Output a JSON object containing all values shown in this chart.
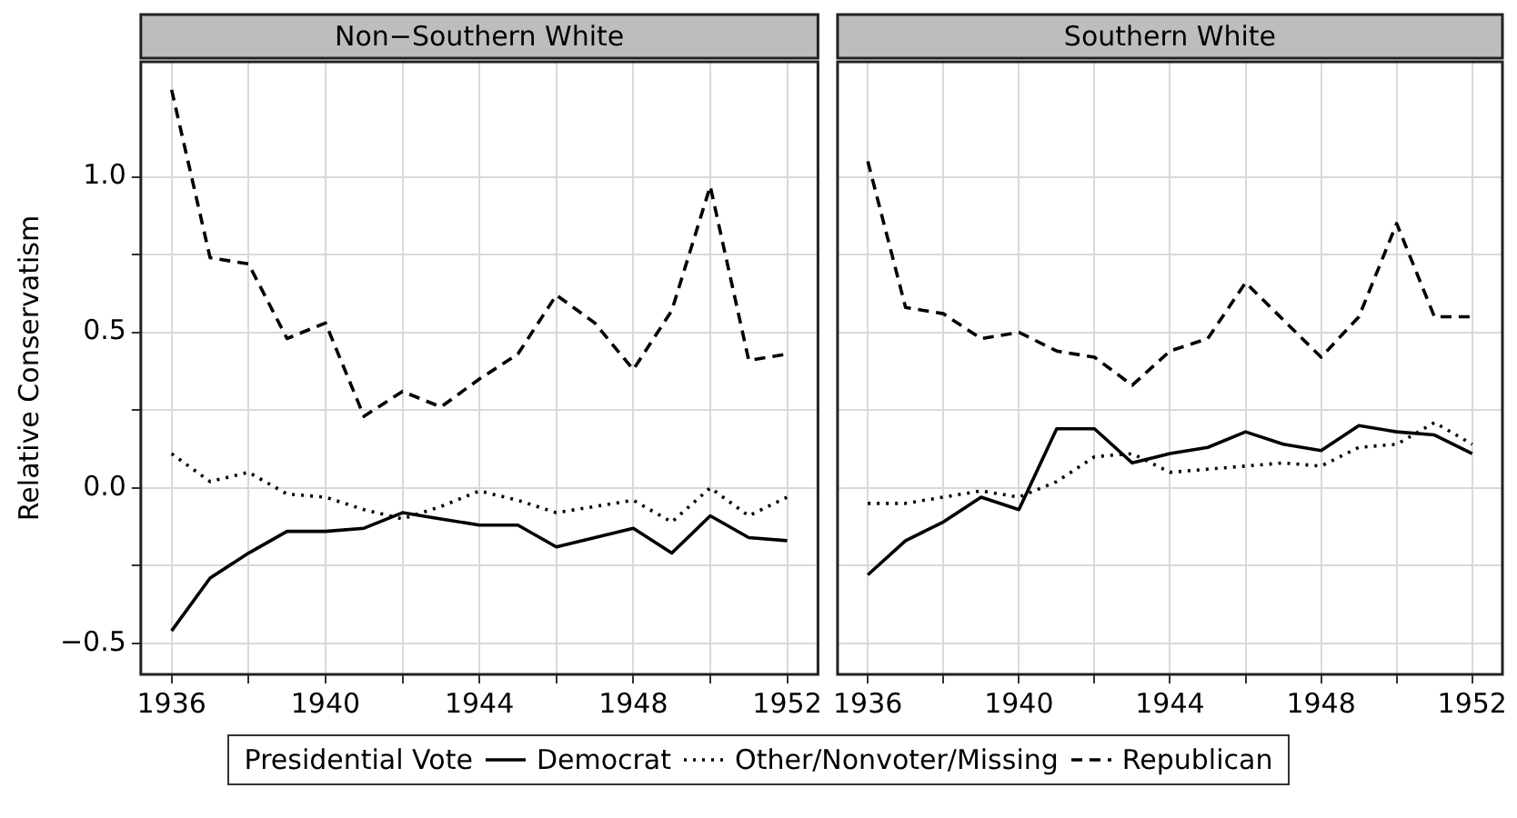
{
  "chart_data": [
    {
      "type": "line",
      "title": "Non−Southern White",
      "ylabel": "Relative Conservatism",
      "legend": "bottom",
      "legend_title": "Presidential Vote",
      "grid": true,
      "marker": "none",
      "x": [
        1936,
        1937,
        1938,
        1939,
        1940,
        1941,
        1942,
        1943,
        1944,
        1945,
        1946,
        1947,
        1948,
        1949,
        1950,
        1951,
        1952
      ],
      "xlim": [
        1935.2,
        1952.8
      ],
      "xticks": [
        1936,
        {
          "value": 1938,
          "label": null
        },
        1940,
        {
          "value": 1942,
          "label": null
        },
        1944,
        {
          "value": 1946,
          "label": null
        },
        1948,
        {
          "value": 1950,
          "label": null
        },
        1952
      ],
      "ylim": [
        -0.6,
        1.37
      ],
      "yticks": [
        {
          "value": -0.5,
          "label": "−0.5"
        },
        {
          "value": -0.25,
          "label": null
        },
        {
          "value": 0,
          "label": "0.0"
        },
        {
          "value": 0.25,
          "label": null
        },
        0.5,
        {
          "value": 0.75,
          "label": null
        },
        {
          "value": 1,
          "label": "1.0"
        }
      ],
      "series": [
        {
          "name": "Democrat",
          "color": "#000000",
          "line_style": "solid",
          "values": [
            -0.46,
            -0.29,
            -0.21,
            -0.14,
            -0.14,
            -0.13,
            -0.08,
            -0.1,
            -0.12,
            -0.12,
            -0.19,
            -0.16,
            -0.13,
            -0.21,
            -0.09,
            -0.16,
            -0.17
          ]
        },
        {
          "name": "Other/Nonvoter/Missing",
          "color": "#000000",
          "line_style": "dotted",
          "values": [
            0.11,
            0.02,
            0.05,
            -0.02,
            -0.03,
            -0.07,
            -0.1,
            -0.06,
            -0.01,
            -0.04,
            -0.08,
            -0.06,
            -0.04,
            -0.11,
            0.0,
            -0.09,
            -0.03
          ]
        },
        {
          "name": "Republican",
          "color": "#000000",
          "line_style": "dashed",
          "values": [
            1.28,
            0.74,
            0.72,
            0.48,
            0.53,
            0.23,
            0.31,
            0.26,
            0.35,
            0.43,
            0.62,
            0.53,
            0.38,
            0.57,
            0.97,
            0.41,
            0.43
          ]
        }
      ]
    },
    {
      "type": "line",
      "title": "Southern White",
      "grid": true,
      "marker": "none",
      "tick_labels": "x",
      "x": [
        1936,
        1937,
        1938,
        1939,
        1940,
        1941,
        1942,
        1943,
        1944,
        1945,
        1946,
        1947,
        1948,
        1949,
        1950,
        1951,
        1952
      ],
      "xlim": [
        1935.2,
        1952.8
      ],
      "xticks": [
        1936,
        {
          "value": 1938,
          "label": null
        },
        1940,
        {
          "value": 1942,
          "label": null
        },
        1944,
        {
          "value": 1946,
          "label": null
        },
        1948,
        {
          "value": 1950,
          "label": null
        },
        1952
      ],
      "ylim": [
        -0.6,
        1.37
      ],
      "yticks": [
        {
          "value": -0.5,
          "label": null
        },
        {
          "value": -0.25,
          "label": null
        },
        {
          "value": 0,
          "label": null
        },
        {
          "value": 0.25,
          "label": null
        },
        {
          "value": 0.5,
          "label": null
        },
        {
          "value": 0.75,
          "label": null
        },
        {
          "value": 1,
          "label": null
        }
      ],
      "series": [
        {
          "color": "#000000",
          "line_style": "solid",
          "values": [
            -0.28,
            -0.17,
            -0.11,
            -0.03,
            -0.07,
            0.19,
            0.19,
            0.08,
            0.11,
            0.13,
            0.18,
            0.14,
            0.12,
            0.2,
            0.18,
            0.17,
            0.11
          ]
        },
        {
          "color": "#000000",
          "line_style": "dotted",
          "values": [
            -0.05,
            -0.05,
            -0.03,
            -0.01,
            -0.03,
            0.02,
            0.1,
            0.11,
            0.05,
            0.06,
            0.07,
            0.08,
            0.07,
            0.13,
            0.14,
            0.21,
            0.14
          ]
        },
        {
          "color": "#000000",
          "line_style": "dashed",
          "values": [
            1.05,
            0.58,
            0.56,
            0.48,
            0.5,
            0.44,
            0.42,
            0.33,
            0.44,
            0.48,
            0.66,
            0.54,
            0.42,
            0.55,
            0.85,
            0.55,
            0.55
          ]
        }
      ]
    }
  ]
}
